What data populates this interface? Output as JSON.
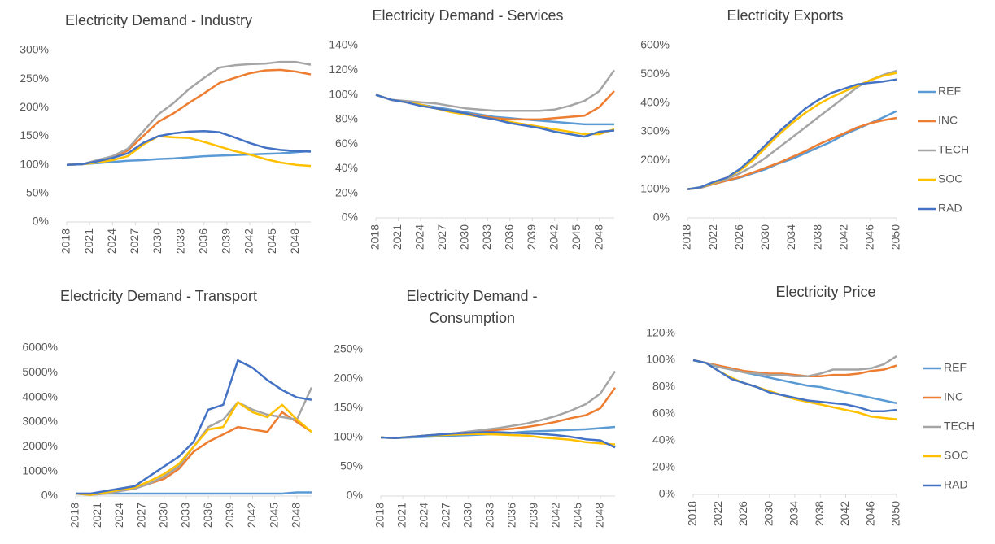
{
  "chart_data": [
    {
      "type": "line",
      "title": "Electricity Demand - Industry",
      "x": [
        2018,
        2020,
        2022,
        2024,
        2026,
        2028,
        2030,
        2032,
        2034,
        2036,
        2038,
        2040,
        2042,
        2044,
        2046,
        2048,
        2050
      ],
      "xlim": [
        2018,
        2050
      ],
      "xticks": [
        2018,
        2021,
        2024,
        2027,
        2030,
        2033,
        2036,
        2039,
        2042,
        2045,
        2048
      ],
      "ylim": [
        0,
        300
      ],
      "yticks": [
        {
          "value": 0,
          "label": "0%"
        },
        {
          "value": 50,
          "label": "50%"
        },
        {
          "value": 100,
          "label": "100%"
        },
        {
          "value": 150,
          "label": "150%"
        },
        {
          "value": 200,
          "label": "200%"
        },
        {
          "value": 250,
          "label": "250%"
        },
        {
          "value": 300,
          "label": "300%"
        }
      ],
      "series": [
        {
          "name": "REF",
          "color": "#5b9bd5",
          "values": [
            100,
            101,
            103,
            105,
            107,
            108,
            110,
            111,
            113,
            115,
            116,
            117,
            118,
            119,
            120,
            122,
            124
          ]
        },
        {
          "name": "INC",
          "color": "#ed7d31",
          "values": [
            100,
            101,
            106,
            112,
            125,
            150,
            175,
            190,
            208,
            225,
            243,
            252,
            260,
            265,
            266,
            263,
            258
          ]
        },
        {
          "name": "TECH",
          "color": "#a5a5a5",
          "values": [
            100,
            101,
            108,
            115,
            128,
            158,
            188,
            208,
            232,
            252,
            270,
            274,
            276,
            277,
            280,
            280,
            275
          ]
        },
        {
          "name": "SOC",
          "color": "#ffc000",
          "values": [
            100,
            101,
            104,
            108,
            115,
            135,
            150,
            148,
            147,
            140,
            132,
            124,
            118,
            110,
            104,
            100,
            98
          ]
        },
        {
          "name": "RAD",
          "color": "#4472c4",
          "values": [
            100,
            101,
            106,
            112,
            120,
            138,
            150,
            155,
            158,
            159,
            157,
            148,
            138,
            130,
            126,
            124,
            123
          ]
        }
      ]
    },
    {
      "type": "line",
      "title": "Electricity Demand - Services",
      "x": [
        2018,
        2020,
        2022,
        2024,
        2026,
        2028,
        2030,
        2032,
        2034,
        2036,
        2038,
        2040,
        2042,
        2044,
        2046,
        2048,
        2050
      ],
      "xlim": [
        2018,
        2050
      ],
      "xticks": [
        2018,
        2021,
        2024,
        2027,
        2030,
        2033,
        2036,
        2039,
        2042,
        2045,
        2048
      ],
      "ylim": [
        0,
        140
      ],
      "yticks": [
        {
          "value": 0,
          "label": "0%"
        },
        {
          "value": 20,
          "label": "20%"
        },
        {
          "value": 40,
          "label": "40%"
        },
        {
          "value": 60,
          "label": "60%"
        },
        {
          "value": 80,
          "label": "80%"
        },
        {
          "value": 100,
          "label": "100%"
        },
        {
          "value": 120,
          "label": "120%"
        },
        {
          "value": 140,
          "label": "140%"
        }
      ],
      "series": [
        {
          "name": "REF",
          "color": "#5b9bd5",
          "values": [
            100,
            96,
            94,
            92,
            90,
            88,
            86,
            84,
            82,
            81,
            80,
            79,
            78,
            77,
            76,
            76,
            76
          ]
        },
        {
          "name": "INC",
          "color": "#ed7d31",
          "values": [
            100,
            96,
            94,
            92,
            89,
            87,
            85,
            83,
            81,
            80,
            80,
            80,
            81,
            82,
            83,
            90,
            103
          ]
        },
        {
          "name": "TECH",
          "color": "#a5a5a5",
          "values": [
            100,
            96,
            95,
            94,
            93,
            91,
            89,
            88,
            87,
            87,
            87,
            87,
            88,
            91,
            95,
            103,
            120
          ]
        },
        {
          "name": "SOC",
          "color": "#ffc000",
          "values": [
            100,
            96,
            94,
            92,
            89,
            86,
            84,
            82,
            80,
            78,
            76,
            74,
            72,
            70,
            68,
            68,
            72
          ]
        },
        {
          "name": "RAD",
          "color": "#4472c4",
          "values": [
            100,
            96,
            94,
            91,
            89,
            87,
            85,
            82,
            80,
            77,
            75,
            73,
            70,
            68,
            66,
            70,
            71
          ]
        }
      ]
    },
    {
      "type": "line",
      "title": "Electricity Exports",
      "legend": "right",
      "x": [
        2018,
        2020,
        2022,
        2024,
        2026,
        2028,
        2030,
        2032,
        2034,
        2036,
        2038,
        2040,
        2042,
        2044,
        2046,
        2048,
        2050
      ],
      "xlim": [
        2018,
        2050
      ],
      "xticks": [
        2018,
        2022,
        2026,
        2030,
        2034,
        2038,
        2042,
        2046,
        2050
      ],
      "ylim": [
        0,
        600
      ],
      "yticks": [
        {
          "value": 0,
          "label": "0%"
        },
        {
          "value": 100,
          "label": "100%"
        },
        {
          "value": 200,
          "label": "200%"
        },
        {
          "value": 300,
          "label": "300%"
        },
        {
          "value": 400,
          "label": "400%"
        },
        {
          "value": 500,
          "label": "500%"
        },
        {
          "value": 600,
          "label": "600%"
        }
      ],
      "series": [
        {
          "name": "REF",
          "color": "#5b9bd5",
          "values": [
            100,
            105,
            118,
            130,
            140,
            155,
            170,
            190,
            205,
            225,
            245,
            265,
            290,
            310,
            330,
            350,
            372
          ]
        },
        {
          "name": "INC",
          "color": "#ed7d31",
          "values": [
            100,
            105,
            118,
            130,
            142,
            158,
            175,
            192,
            212,
            232,
            255,
            275,
            295,
            315,
            330,
            340,
            348
          ]
        },
        {
          "name": "TECH",
          "color": "#a5a5a5",
          "values": [
            100,
            105,
            120,
            135,
            155,
            180,
            210,
            245,
            280,
            315,
            350,
            385,
            420,
            455,
            480,
            498,
            512
          ]
        },
        {
          "name": "SOC",
          "color": "#ffc000",
          "values": [
            100,
            107,
            122,
            140,
            165,
            200,
            245,
            290,
            330,
            365,
            395,
            420,
            440,
            460,
            480,
            495,
            505
          ]
        },
        {
          "name": "RAD",
          "color": "#4472c4",
          "values": [
            100,
            107,
            125,
            140,
            170,
            210,
            255,
            300,
            340,
            380,
            410,
            435,
            450,
            465,
            470,
            475,
            482
          ]
        }
      ]
    },
    {
      "type": "line",
      "title": "Electricity Demand - Transport",
      "x": [
        2018,
        2020,
        2022,
        2024,
        2026,
        2028,
        2030,
        2032,
        2034,
        2036,
        2038,
        2040,
        2042,
        2044,
        2046,
        2048,
        2050
      ],
      "xlim": [
        2018,
        2050
      ],
      "xticks": [
        2018,
        2021,
        2024,
        2027,
        2030,
        2033,
        2036,
        2039,
        2042,
        2045,
        2048
      ],
      "ylim": [
        0,
        6000
      ],
      "yticks": [
        {
          "value": 0,
          "label": "0%"
        },
        {
          "value": 1000,
          "label": "1000%"
        },
        {
          "value": 2000,
          "label": "2000%"
        },
        {
          "value": 3000,
          "label": "3000%"
        },
        {
          "value": 4000,
          "label": "4000%"
        },
        {
          "value": 5000,
          "label": "5000%"
        },
        {
          "value": 6000,
          "label": "6000%"
        }
      ],
      "series": [
        {
          "name": "REF",
          "color": "#5b9bd5",
          "values": [
            100,
            100,
            100,
            100,
            100,
            100,
            100,
            100,
            100,
            100,
            100,
            100,
            100,
            100,
            100,
            150,
            150
          ]
        },
        {
          "name": "INC",
          "color": "#ed7d31",
          "values": [
            100,
            50,
            100,
            200,
            300,
            500,
            700,
            1100,
            1800,
            2200,
            2500,
            2800,
            2700,
            2600,
            3400,
            3000,
            2600
          ]
        },
        {
          "name": "TECH",
          "color": "#a5a5a5",
          "values": [
            100,
            50,
            100,
            200,
            300,
            500,
            800,
            1200,
            2000,
            2800,
            3100,
            3800,
            3500,
            3300,
            3200,
            3100,
            4400
          ]
        },
        {
          "name": "SOC",
          "color": "#ffc000",
          "values": [
            100,
            50,
            150,
            250,
            350,
            600,
            900,
            1300,
            2000,
            2700,
            2800,
            3800,
            3400,
            3200,
            3700,
            3100,
            2600
          ]
        },
        {
          "name": "RAD",
          "color": "#4472c4",
          "values": [
            100,
            100,
            200,
            300,
            400,
            800,
            1200,
            1600,
            2200,
            3500,
            3700,
            5500,
            5200,
            4700,
            4300,
            4000,
            3900
          ]
        }
      ]
    },
    {
      "type": "line",
      "title": "Electricity Demand - Consumption",
      "x": [
        2018,
        2020,
        2022,
        2024,
        2026,
        2028,
        2030,
        2032,
        2034,
        2036,
        2038,
        2040,
        2042,
        2044,
        2046,
        2048,
        2050
      ],
      "xlim": [
        2018,
        2050
      ],
      "xticks": [
        2018,
        2021,
        2024,
        2027,
        2030,
        2033,
        2036,
        2039,
        2042,
        2045,
        2048
      ],
      "ylim": [
        0,
        250
      ],
      "yticks": [
        {
          "value": 0,
          "label": "0%"
        },
        {
          "value": 50,
          "label": "50%"
        },
        {
          "value": 100,
          "label": "100%"
        },
        {
          "value": 150,
          "label": "150%"
        },
        {
          "value": 200,
          "label": "200%"
        },
        {
          "value": 250,
          "label": "250%"
        }
      ],
      "series": [
        {
          "name": "REF",
          "color": "#5b9bd5",
          "values": [
            100,
            99,
            100,
            101,
            102,
            103,
            104,
            105,
            106,
            108,
            110,
            111,
            112,
            113,
            114,
            116,
            118
          ]
        },
        {
          "name": "INC",
          "color": "#ed7d31",
          "values": [
            100,
            99,
            101,
            103,
            105,
            107,
            109,
            111,
            113,
            115,
            118,
            122,
            127,
            133,
            138,
            150,
            185
          ]
        },
        {
          "name": "TECH",
          "color": "#a5a5a5",
          "values": [
            100,
            99,
            101,
            103,
            105,
            107,
            110,
            113,
            116,
            120,
            124,
            130,
            137,
            146,
            157,
            175,
            213
          ]
        },
        {
          "name": "SOC",
          "color": "#ffc000",
          "values": [
            100,
            99,
            101,
            103,
            104,
            105,
            106,
            106,
            105,
            104,
            103,
            100,
            98,
            96,
            92,
            90,
            88
          ]
        },
        {
          "name": "RAD",
          "color": "#4472c4",
          "values": [
            100,
            99,
            101,
            103,
            105,
            107,
            108,
            109,
            109,
            108,
            107,
            106,
            104,
            101,
            97,
            95,
            83
          ]
        }
      ]
    },
    {
      "type": "line",
      "title": "Electricity Price",
      "legend": "right",
      "x": [
        2018,
        2020,
        2022,
        2024,
        2026,
        2028,
        2030,
        2032,
        2034,
        2036,
        2038,
        2040,
        2042,
        2044,
        2046,
        2048,
        2050
      ],
      "xlim": [
        2018,
        2050
      ],
      "xticks": [
        2018,
        2022,
        2026,
        2030,
        2034,
        2038,
        2042,
        2046,
        2050
      ],
      "ylim": [
        0,
        120
      ],
      "yticks": [
        {
          "value": 0,
          "label": "0%"
        },
        {
          "value": 20,
          "label": "20%"
        },
        {
          "value": 40,
          "label": "40%"
        },
        {
          "value": 60,
          "label": "60%"
        },
        {
          "value": 80,
          "label": "80%"
        },
        {
          "value": 100,
          "label": "100%"
        },
        {
          "value": 120,
          "label": "120%"
        }
      ],
      "series": [
        {
          "name": "REF",
          "color": "#5b9bd5",
          "values": [
            100,
            98,
            95,
            93,
            91,
            89,
            87,
            85,
            83,
            81,
            80,
            78,
            76,
            74,
            72,
            70,
            68
          ]
        },
        {
          "name": "INC",
          "color": "#ed7d31",
          "values": [
            100,
            98,
            96,
            94,
            92,
            91,
            90,
            90,
            89,
            88,
            88,
            89,
            89,
            90,
            92,
            93,
            96
          ]
        },
        {
          "name": "TECH",
          "color": "#a5a5a5",
          "values": [
            100,
            98,
            95,
            93,
            91,
            90,
            89,
            89,
            88,
            88,
            90,
            93,
            93,
            93,
            94,
            97,
            103
          ]
        },
        {
          "name": "SOC",
          "color": "#ffc000",
          "values": [
            100,
            98,
            92,
            87,
            83,
            80,
            77,
            74,
            71,
            69,
            67,
            65,
            63,
            61,
            58,
            57,
            56
          ]
        },
        {
          "name": "RAD",
          "color": "#4472c4",
          "values": [
            100,
            98,
            92,
            86,
            83,
            80,
            76,
            74,
            72,
            70,
            69,
            68,
            67,
            65,
            62,
            62,
            63
          ]
        }
      ]
    }
  ]
}
